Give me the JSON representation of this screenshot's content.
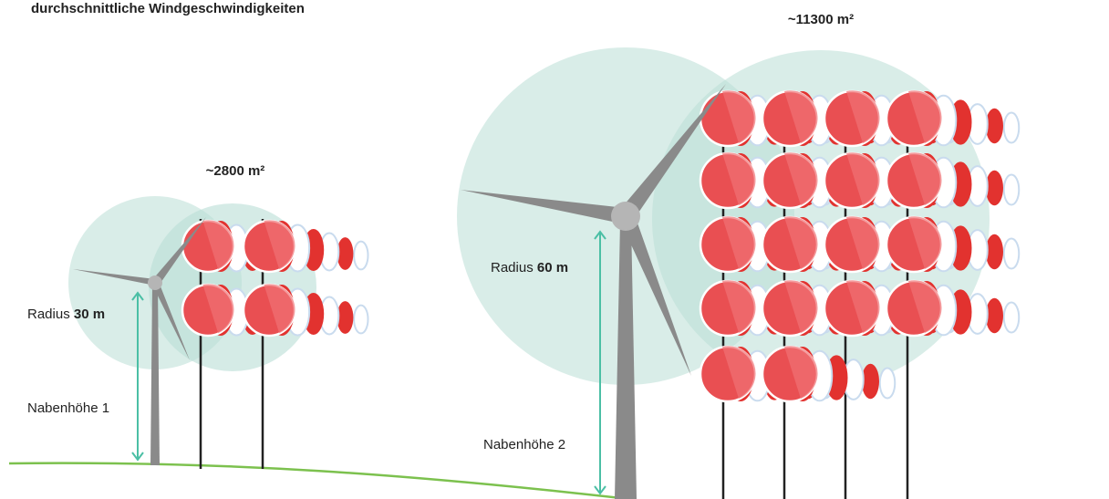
{
  "title": "durchschnittliche Windgeschwindigkeiten",
  "turbine_small": {
    "area": "~2800 m²",
    "radius_label": "Radius",
    "radius": "30 m",
    "hub_height": "Nabenhöhe 1"
  },
  "turbine_large": {
    "area": "~11300 m²",
    "radius_label": "Radius",
    "radius": "60 m",
    "hub_height": "Nabenhöhe 2"
  }
}
